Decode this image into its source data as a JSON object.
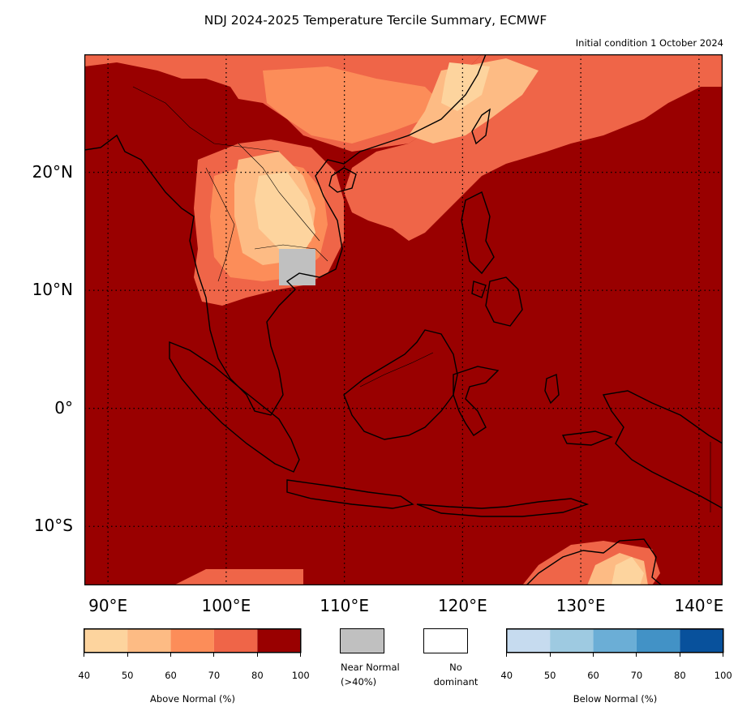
{
  "title": "NDJ 2024-2025 Temperature Tercile Summary, ECMWF",
  "subtitle": "Initial condition 1 October 2024",
  "map": {
    "lon_range": [
      88,
      142
    ],
    "lat_range": [
      -15,
      30
    ],
    "lat_ticks": [
      {
        "value": 20,
        "label": "20°N"
      },
      {
        "value": 10,
        "label": "10°N"
      },
      {
        "value": 0,
        "label": "0°"
      },
      {
        "value": -10,
        "label": "10°S"
      }
    ],
    "lon_ticks": [
      {
        "value": 90,
        "label": "90°E"
      },
      {
        "value": 100,
        "label": "100°E"
      },
      {
        "value": 110,
        "label": "110°E"
      },
      {
        "value": 120,
        "label": "120°E"
      },
      {
        "value": 130,
        "label": "130°E"
      },
      {
        "value": 140,
        "label": "140°E"
      }
    ],
    "gridlines": "dotted",
    "dominant_category": "Above Normal, 80-100% over most of the domain; lower probabilities over mainland Southeast Asia, southern China and northern Australia; Near Normal over southern Cambodia"
  },
  "colors": {
    "above": [
      "#fdd49e",
      "#fdbb84",
      "#fc8d59",
      "#ef6548",
      "#990000"
    ],
    "near_normal": "#c0c0c0",
    "no_dominant": "#ffffff",
    "below": [
      "#c6dbef",
      "#9ecae1",
      "#6baed6",
      "#4292c6",
      "#08519c"
    ]
  },
  "legend": {
    "above": {
      "caption": "Above Normal (%)",
      "ticks": [
        "40",
        "50",
        "60",
        "70",
        "80",
        "100"
      ]
    },
    "near_normal": {
      "line1": "Near Normal",
      "line2": "(>40%)"
    },
    "no_dominant": {
      "line1": "No",
      "line2": "dominant"
    },
    "below": {
      "caption": "Below Normal (%)",
      "ticks": [
        "40",
        "50",
        "60",
        "70",
        "80",
        "100"
      ]
    }
  }
}
